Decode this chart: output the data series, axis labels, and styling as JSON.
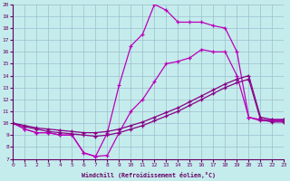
{
  "xlabel": "Windchill (Refroidissement éolien,°C)",
  "xlim": [
    0,
    23
  ],
  "ylim": [
    7,
    20
  ],
  "yticks": [
    7,
    8,
    9,
    10,
    11,
    12,
    13,
    14,
    15,
    16,
    17,
    18,
    19,
    20
  ],
  "xticks": [
    0,
    1,
    2,
    3,
    4,
    5,
    6,
    7,
    8,
    9,
    10,
    11,
    12,
    13,
    14,
    15,
    16,
    17,
    18,
    19,
    20,
    21,
    22,
    23
  ],
  "bg_color": "#c5ecec",
  "grid_color": "#9abfcf",
  "line_color": "#bb00bb",
  "line1_x": [
    0,
    1,
    2,
    3,
    4,
    5,
    6,
    7,
    8,
    9,
    10,
    11,
    12,
    13,
    14,
    15,
    16,
    17,
    18,
    19,
    20,
    21,
    22,
    23
  ],
  "line1_y": [
    10,
    9.5,
    9.2,
    9.2,
    9.0,
    9.0,
    7.5,
    7.2,
    9.2,
    13.2,
    16.5,
    17.5,
    20.0,
    19.5,
    18.5,
    18.5,
    18.5,
    18.2,
    18.0,
    16.0,
    10.5,
    10.3,
    10.3,
    10.3
  ],
  "line2_x": [
    0,
    1,
    2,
    3,
    4,
    5,
    6,
    7,
    8,
    9,
    10,
    11,
    12,
    13,
    14,
    15,
    16,
    17,
    18,
    19,
    20,
    21,
    22,
    23
  ],
  "line2_y": [
    10,
    9.5,
    9.2,
    9.2,
    9.0,
    9.0,
    7.5,
    7.2,
    7.3,
    9.2,
    11.0,
    12.0,
    13.5,
    15.0,
    15.2,
    15.5,
    16.2,
    16.0,
    16.0,
    14.0,
    10.5,
    10.2,
    10.2,
    10.2
  ],
  "line3_x": [
    0,
    1,
    2,
    3,
    4,
    5,
    6,
    7,
    8,
    9,
    10,
    11,
    12,
    13,
    14,
    15,
    16,
    17,
    18,
    19,
    20,
    21,
    22,
    23
  ],
  "line3_y": [
    10,
    9.8,
    9.6,
    9.5,
    9.4,
    9.3,
    9.2,
    9.2,
    9.3,
    9.5,
    9.8,
    10.1,
    10.5,
    10.9,
    11.3,
    11.8,
    12.3,
    12.8,
    13.3,
    13.7,
    14.0,
    10.5,
    10.3,
    10.3
  ],
  "line4_x": [
    0,
    1,
    2,
    3,
    4,
    5,
    6,
    7,
    8,
    9,
    10,
    11,
    12,
    13,
    14,
    15,
    16,
    17,
    18,
    19,
    20,
    21,
    22,
    23
  ],
  "line4_y": [
    10,
    9.7,
    9.5,
    9.3,
    9.2,
    9.1,
    9.0,
    8.9,
    9.0,
    9.2,
    9.5,
    9.8,
    10.2,
    10.6,
    11.0,
    11.5,
    12.0,
    12.5,
    13.0,
    13.4,
    13.7,
    10.3,
    10.1,
    10.1
  ]
}
